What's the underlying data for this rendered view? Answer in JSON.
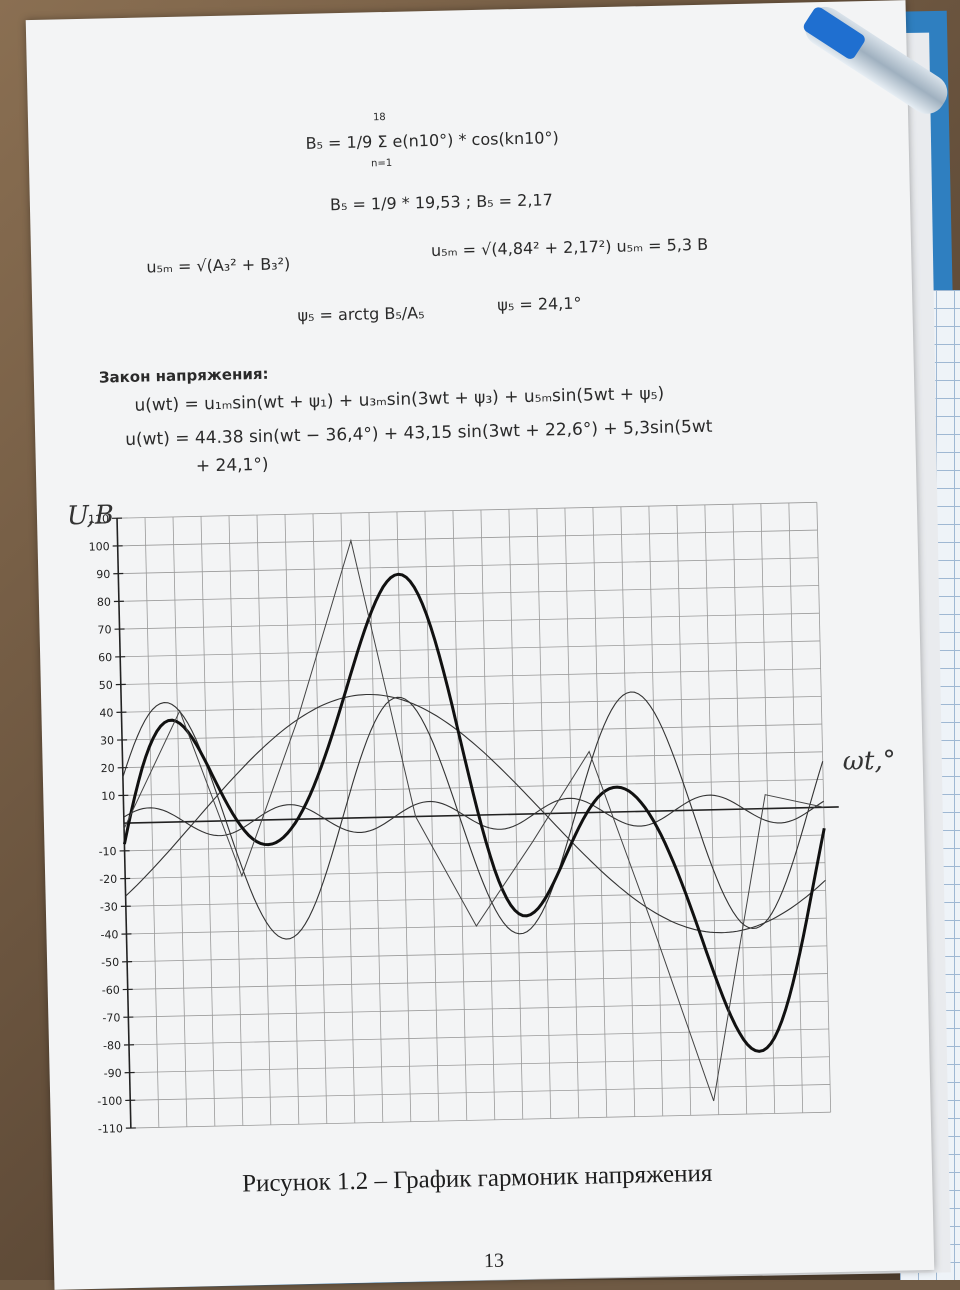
{
  "formulas": {
    "b5_sum": "B₅ = 1/9 Σ e(n10°) * cos(kn10°)",
    "sum_upper": "18",
    "sum_lower": "n=1",
    "b5_calc": "B₅ = 1/9 * 19,53 ; B₅ = 2,17",
    "u5m_def": "u₅ₘ = √(A₃² + B₃²)",
    "u5m_calc": "u₅ₘ = √(4,84² + 2,17²)  u₅ₘ = 5,3 В",
    "psi5_def": "ψ₅ = arctg B₅/A₅",
    "psi5_val": "ψ₅ = 24,1°"
  },
  "law": {
    "heading": "Закон напряжения:",
    "general": "u(wt) =  u₁ₘsin(wt + ψ₁) + u₃ₘsin(3wt + ψ₃) + u₅ₘsin(5wt + ψ₅)",
    "numeric_1": "u(wt) = 44.38 sin(wt − 36,4°) + 43,15 sin(3wt + 22,6°) + 5,3sin(5wt",
    "numeric_2": "+ 24,1°)"
  },
  "caption": "Рисунок 1.2 – График гармоник напряжения",
  "page_number": "13",
  "handwriting": {
    "y_axis": "U,B",
    "x_axis": "ωt,°"
  },
  "chart_data": {
    "type": "line",
    "ylabel": "U,B",
    "xlabel": "ωt,°",
    "ylim": [
      -110,
      110
    ],
    "y_ticks": [
      110,
      100,
      90,
      80,
      70,
      60,
      50,
      40,
      30,
      20,
      10,
      -10,
      -20,
      -30,
      -40,
      -50,
      -60,
      -70,
      -80,
      -90,
      -100,
      -110
    ],
    "x_range_deg": [
      0,
      360
    ],
    "grid": true,
    "series": [
      {
        "amplitude": 44.38,
        "harmonic": 1,
        "phase_deg": -36.4
      },
      {
        "amplitude": 43.15,
        "harmonic": 3,
        "phase_deg": 22.6
      },
      {
        "amplitude": 5.3,
        "harmonic": 5,
        "phase_deg": 24.1
      },
      {
        "kind": "sum"
      },
      {
        "kind": "sampled",
        "x": [
          0,
          30,
          60,
          90,
          120,
          150,
          180,
          210,
          240,
          270,
          300,
          330,
          360
        ],
        "y": [
          -2,
          40,
          -20,
          35,
          100,
          0,
          -40,
          -10,
          22,
          -40,
          -105,
          5,
          0
        ]
      }
    ]
  }
}
